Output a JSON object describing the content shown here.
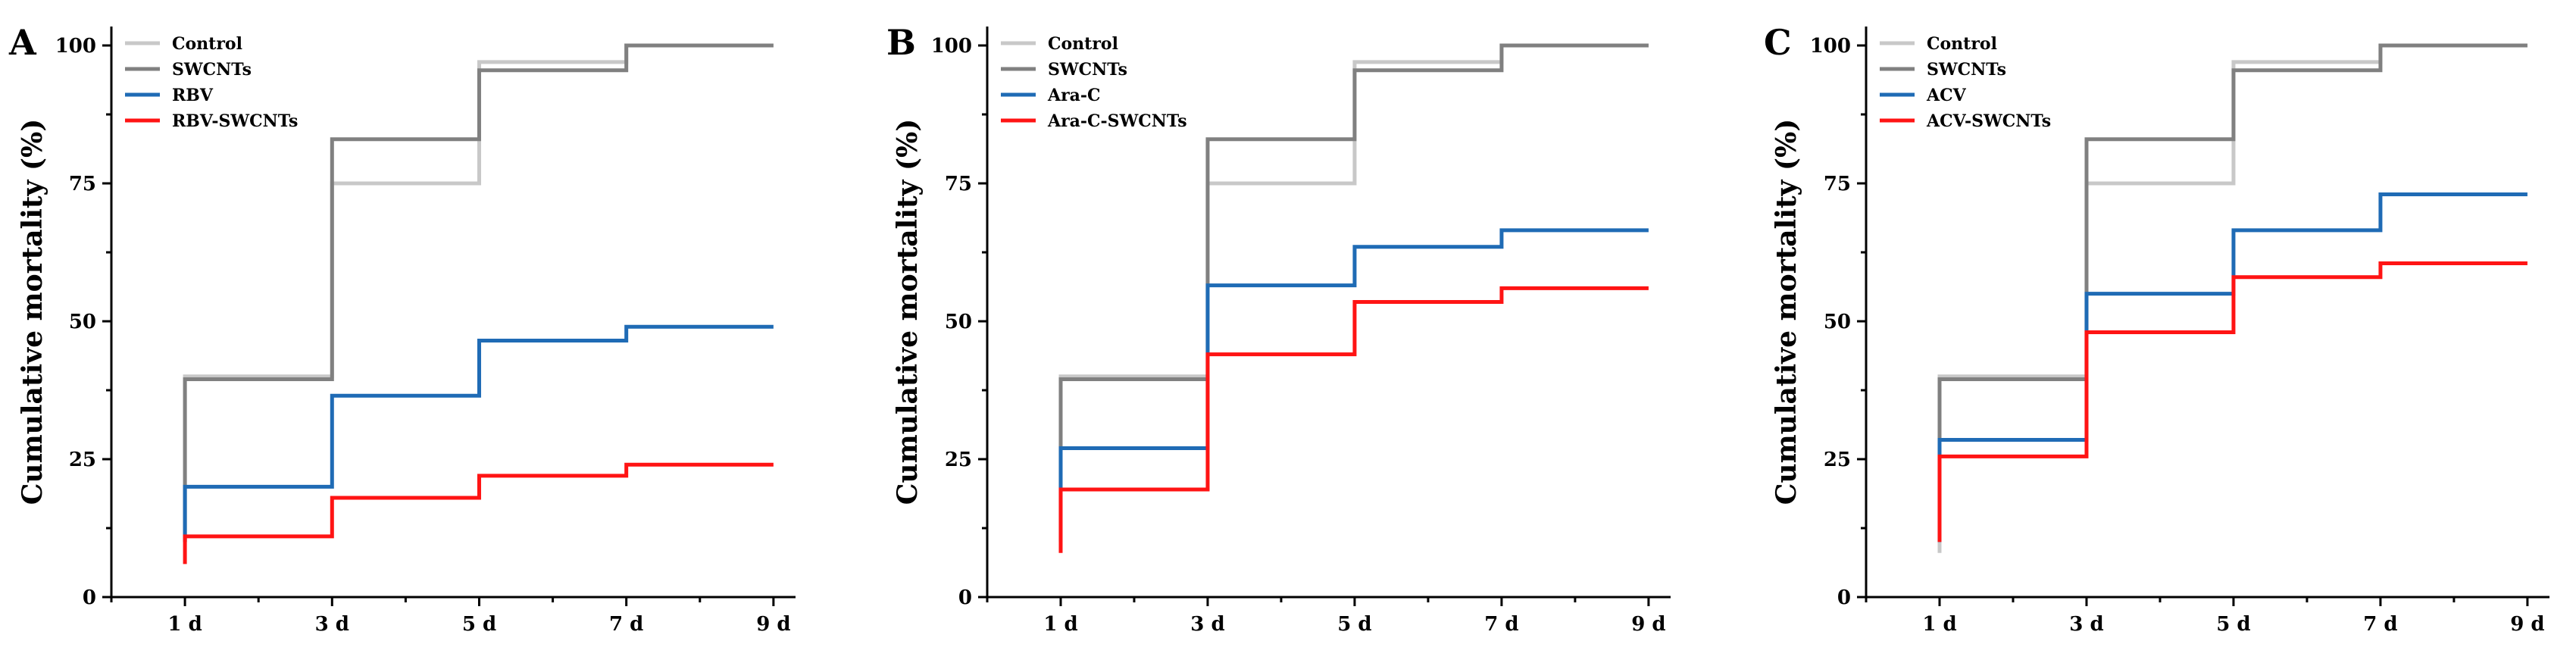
{
  "chart_data": [
    {
      "type": "line",
      "panel_label": "A",
      "ylabel": "Cumulative mortality (%)",
      "xlabel": "",
      "x_ticks": [
        "1 d",
        "3 d",
        "5 d",
        "7 d",
        "9 d"
      ],
      "x_domain": [
        0,
        9.3
      ],
      "y_ticks": [
        0,
        25,
        50,
        75,
        100
      ],
      "ylim": [
        0,
        100
      ],
      "step": true,
      "grid": false,
      "legend_position": "top-left",
      "series": [
        {
          "name": "Control",
          "color": "#c8c8c8",
          "start_y": 10,
          "points": [
            [
              1,
              40
            ],
            [
              3,
              75
            ],
            [
              5,
              97
            ],
            [
              7,
              100
            ],
            [
              9,
              100
            ]
          ]
        },
        {
          "name": "SWCNTs",
          "color": "#808080",
          "start_y": 10,
          "points": [
            [
              1,
              39.5
            ],
            [
              3,
              83
            ],
            [
              5,
              95.5
            ],
            [
              7,
              100
            ],
            [
              9,
              100
            ]
          ]
        },
        {
          "name": "RBV",
          "color": "#1f6bb5",
          "start_y": 10,
          "points": [
            [
              1,
              20
            ],
            [
              3,
              36.5
            ],
            [
              5,
              46.5
            ],
            [
              7,
              49
            ],
            [
              9,
              49
            ]
          ]
        },
        {
          "name": "RBV-SWCNTs",
          "color": "#ff1414",
          "start_y": 6,
          "points": [
            [
              1,
              11
            ],
            [
              3,
              18
            ],
            [
              5,
              22
            ],
            [
              7,
              24
            ],
            [
              9,
              24
            ]
          ]
        }
      ]
    },
    {
      "type": "line",
      "panel_label": "B",
      "ylabel": "Cumulative mortality (%)",
      "xlabel": "",
      "x_ticks": [
        "1 d",
        "3 d",
        "5 d",
        "7 d",
        "9 d"
      ],
      "x_domain": [
        0,
        9.3
      ],
      "y_ticks": [
        0,
        25,
        50,
        75,
        100
      ],
      "ylim": [
        0,
        100
      ],
      "step": true,
      "grid": false,
      "legend_position": "top-left",
      "series": [
        {
          "name": "Control",
          "color": "#c8c8c8",
          "start_y": 10,
          "points": [
            [
              1,
              40
            ],
            [
              3,
              75
            ],
            [
              5,
              97
            ],
            [
              7,
              100
            ],
            [
              9,
              100
            ]
          ]
        },
        {
          "name": "SWCNTs",
          "color": "#808080",
          "start_y": 10,
          "points": [
            [
              1,
              39.5
            ],
            [
              3,
              83
            ],
            [
              5,
              95.5
            ],
            [
              7,
              100
            ],
            [
              9,
              100
            ]
          ]
        },
        {
          "name": "Ara-C",
          "color": "#1f6bb5",
          "start_y": 10,
          "points": [
            [
              1,
              27
            ],
            [
              3,
              56.5
            ],
            [
              5,
              63.5
            ],
            [
              7,
              66.5
            ],
            [
              9,
              66.5
            ]
          ]
        },
        {
          "name": "Ara-C-SWCNTs",
          "color": "#ff1414",
          "start_y": 8,
          "points": [
            [
              1,
              19.5
            ],
            [
              3,
              44
            ],
            [
              5,
              53.5
            ],
            [
              7,
              56
            ],
            [
              9,
              56
            ]
          ]
        }
      ]
    },
    {
      "type": "line",
      "panel_label": "C",
      "ylabel": "Cumulative mortality (%)",
      "xlabel": "",
      "x_ticks": [
        "1 d",
        "3 d",
        "5 d",
        "7 d",
        "9 d"
      ],
      "x_domain": [
        0,
        9.3
      ],
      "y_ticks": [
        0,
        25,
        50,
        75,
        100
      ],
      "ylim": [
        0,
        100
      ],
      "step": true,
      "grid": false,
      "legend_position": "top-left",
      "series": [
        {
          "name": "Control",
          "color": "#c8c8c8",
          "start_y": 8,
          "points": [
            [
              1,
              40
            ],
            [
              3,
              75
            ],
            [
              5,
              97
            ],
            [
              7,
              100
            ],
            [
              9,
              100
            ]
          ]
        },
        {
          "name": "SWCNTs",
          "color": "#808080",
          "start_y": 10,
          "points": [
            [
              1,
              39.5
            ],
            [
              3,
              83
            ],
            [
              5,
              95.5
            ],
            [
              7,
              100
            ],
            [
              9,
              100
            ]
          ]
        },
        {
          "name": "ACV",
          "color": "#1f6bb5",
          "start_y": 10,
          "points": [
            [
              1,
              28.5
            ],
            [
              3,
              55
            ],
            [
              5,
              66.5
            ],
            [
              7,
              73
            ],
            [
              9,
              73
            ]
          ]
        },
        {
          "name": "ACV-SWCNTs",
          "color": "#ff1414",
          "start_y": 10,
          "points": [
            [
              1,
              25.5
            ],
            [
              3,
              48
            ],
            [
              5,
              58
            ],
            [
              7,
              60.5
            ],
            [
              9,
              60.5
            ]
          ]
        }
      ]
    }
  ]
}
